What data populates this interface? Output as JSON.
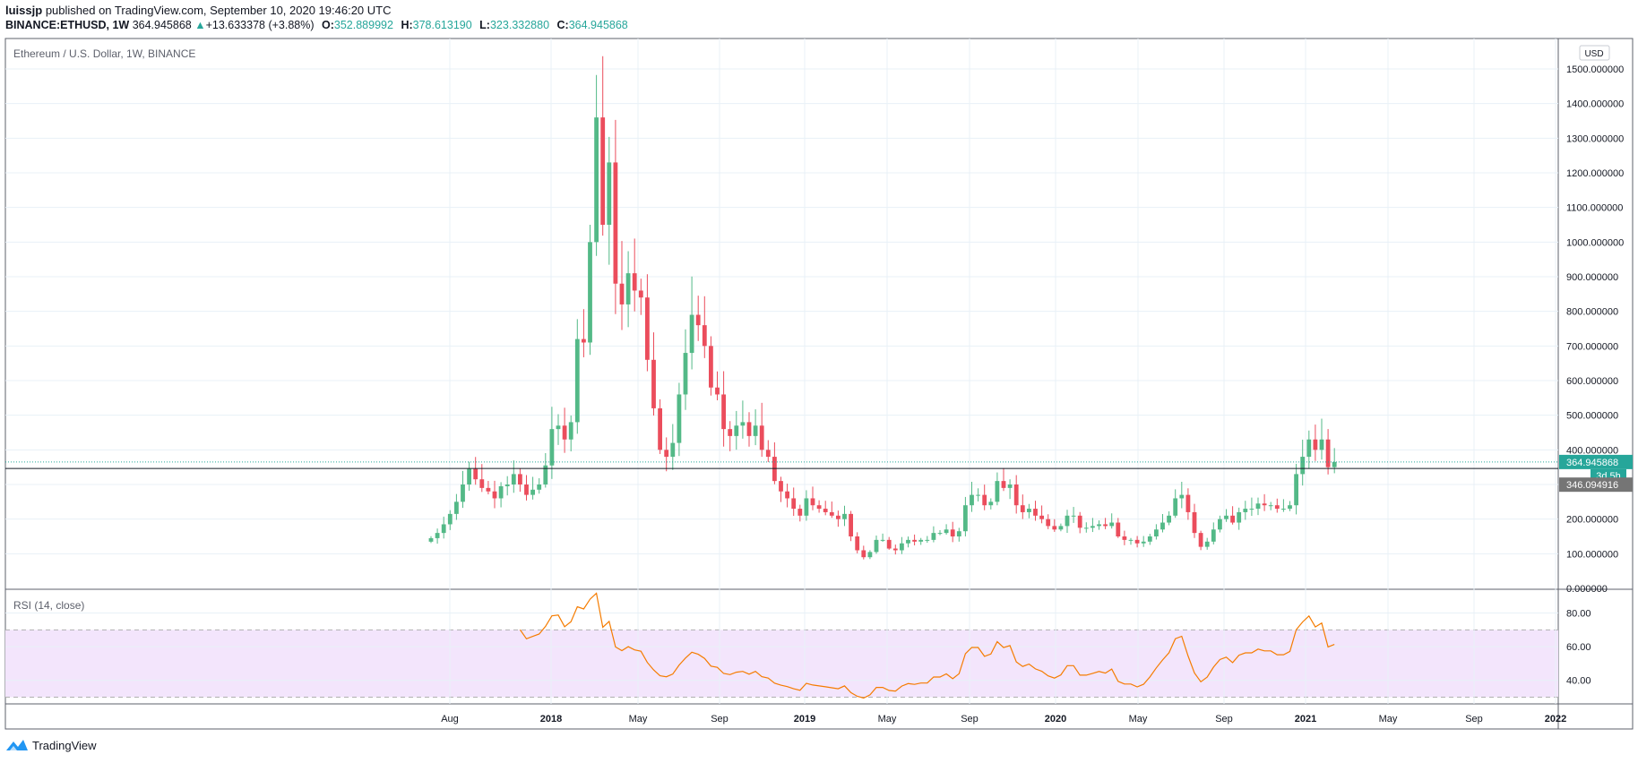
{
  "header": {
    "author": "luissjp",
    "published_text": "published on TradingView.com, September 10, 2020 19:46:20 UTC",
    "symbol": "BINANCE:ETHUSD, 1W",
    "price": "364.945868",
    "change": "+13.633378 (+3.88%)",
    "o_label": "O:",
    "o_value": "352.889992",
    "h_label": "H:",
    "h_value": "378.613190",
    "l_label": "L:",
    "l_value": "323.332880",
    "c_label": "C:",
    "c_value": "364.945868"
  },
  "footer": {
    "brand": "TradingView",
    "logo_icon": "tradingview-logo-icon"
  },
  "colors": {
    "up": "#26a69a",
    "up_candle": "#53b987",
    "down": "#eb4d5c",
    "rsi_line": "#f57c00",
    "rsi_band": "#f3e5fc",
    "grid": "#e8f1f7"
  },
  "chart_data": [
    {
      "type": "candlestick",
      "title": "Ethereum / U.S. Dollar, 1W, BINANCE",
      "currency_badge": "USD",
      "ylim": [
        0,
        1500
      ],
      "y_ticks": [
        "1500.000000",
        "1400.000000",
        "1300.000000",
        "1200.000000",
        "1100.000000",
        "1000.000000",
        "900.000000",
        "800.000000",
        "700.000000",
        "600.000000",
        "500.000000",
        "400.000000",
        "300.000000",
        "200.000000",
        "100.000000",
        "0.000000"
      ],
      "x_ticks": [
        "Aug",
        "2018",
        "May",
        "Sep",
        "2019",
        "May",
        "Sep",
        "2020",
        "May",
        "Sep",
        "2021",
        "May",
        "Sep",
        "2022"
      ],
      "last_price_label": "364.945868",
      "countdown_label": "3d 5h",
      "level_label": "346.094916",
      "level_line": 346.09,
      "grid": true,
      "closes": [
        145,
        160,
        185,
        215,
        250,
        300,
        345,
        315,
        290,
        280,
        260,
        295,
        300,
        330,
        300,
        270,
        285,
        300,
        355,
        460,
        470,
        430,
        480,
        720,
        710,
        1000,
        1360,
        1050,
        1230,
        880,
        820,
        910,
        860,
        840,
        660,
        520,
        400,
        380,
        420,
        560,
        680,
        790,
        760,
        700,
        580,
        560,
        460,
        440,
        470,
        480,
        440,
        470,
        400,
        380,
        310,
        280,
        260,
        230,
        210,
        260,
        240,
        230,
        220,
        210,
        200,
        215,
        150,
        110,
        90,
        105,
        140,
        140,
        115,
        110,
        130,
        140,
        135,
        140,
        140,
        160,
        160,
        170,
        150,
        165,
        240,
        270,
        270,
        240,
        250,
        310,
        290,
        300,
        240,
        220,
        230,
        210,
        200,
        180,
        170,
        180,
        210,
        210,
        175,
        175,
        180,
        185,
        180,
        190,
        150,
        140,
        140,
        130,
        135,
        150,
        170,
        190,
        210,
        260,
        270,
        220,
        160,
        120,
        135,
        170,
        200,
        210,
        190,
        220,
        230,
        230,
        245,
        240,
        240,
        230,
        230,
        240,
        330,
        380,
        430,
        400,
        430,
        350,
        365
      ],
      "rsi": {
        "title": "RSI (14, close)",
        "y_ticks": [
          "80.00",
          "60.00",
          "40.00"
        ],
        "ylim": [
          26,
          92
        ],
        "band": [
          30,
          70
        ],
        "values": [
          null,
          null,
          null,
          null,
          null,
          null,
          null,
          null,
          null,
          null,
          null,
          null,
          null,
          null,
          null,
          null,
          null,
          null,
          null,
          null,
          null,
          null,
          null,
          null,
          null,
          null,
          null,
          null,
          null,
          null,
          null,
          null,
          null,
          null,
          null,
          null,
          null,
          null,
          null,
          null,
          null,
          null,
          null,
          null,
          null,
          null,
          null,
          null,
          null,
          null,
          null,
          null,
          null,
          null,
          null,
          null,
          null,
          null,
          null,
          null,
          null,
          null,
          null,
          null,
          null,
          null,
          null,
          null,
          null,
          null,
          null,
          null,
          null,
          null,
          null,
          null,
          null,
          null,
          null,
          null,
          null,
          null,
          null,
          null,
          null,
          null,
          null,
          null,
          null,
          null,
          null,
          null,
          null,
          null,
          null,
          null,
          null,
          null,
          null,
          null,
          null,
          null,
          null,
          null,
          null,
          null,
          null,
          null,
          null,
          null,
          null,
          null,
          null,
          null,
          null,
          null,
          null,
          null,
          null,
          null,
          null,
          null,
          null,
          null,
          null,
          null,
          null,
          null,
          null,
          null,
          null,
          null,
          null,
          null,
          null,
          null,
          null,
          null,
          null,
          null,
          null,
          null,
          null,
          null,
          null,
          null
        ]
      }
    }
  ]
}
